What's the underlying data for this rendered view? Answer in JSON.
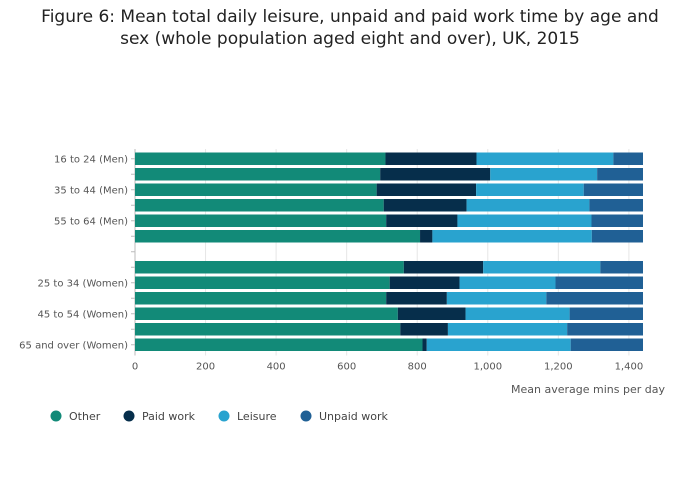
{
  "title": {
    "line1": "Figure 6: Mean total daily leisure, unpaid and paid work time by age and",
    "line2": "sex (whole population aged eight and over), UK, 2015"
  },
  "chart_data": {
    "type": "bar",
    "orientation": "horizontal",
    "stacked": true,
    "xlabel": "Mean average mins per day",
    "xlim": [
      0,
      1440
    ],
    "xticks": [
      0,
      200,
      400,
      600,
      800,
      1000,
      1200,
      1400
    ],
    "xtick_labels": [
      "0",
      "200",
      "400",
      "600",
      "800",
      "1,000",
      "1,200",
      "1,400"
    ],
    "categories": [
      "16 to 24 (Men)",
      "",
      "35 to 44 (Men)",
      "",
      "55 to 64 (Men)",
      "",
      "",
      "",
      "25 to 34 (Women)",
      "",
      "45 to 54 (Women)",
      "",
      "65 and over (Women)"
    ],
    "bar_present": [
      true,
      true,
      true,
      true,
      true,
      true,
      false,
      true,
      true,
      true,
      true,
      true,
      true
    ],
    "series": [
      {
        "name": "Other",
        "color": "#128a78",
        "values": [
          710,
          695,
          685,
          705,
          712,
          808,
          0,
          762,
          722,
          712,
          745,
          752,
          815
        ]
      },
      {
        "name": "Paid work",
        "color": "#062e4b",
        "values": [
          258,
          312,
          282,
          235,
          202,
          35,
          0,
          225,
          198,
          172,
          192,
          135,
          12
        ]
      },
      {
        "name": "Leisure",
        "color": "#29a3cf",
        "values": [
          388,
          303,
          305,
          348,
          380,
          452,
          0,
          332,
          272,
          282,
          295,
          338,
          408
        ]
      },
      {
        "name": "Unpaid work",
        "color": "#206095",
        "values": [
          84,
          130,
          168,
          152,
          146,
          145,
          0,
          121,
          248,
          274,
          208,
          215,
          205
        ]
      }
    ],
    "legend_position": "bottom-left",
    "grid": "vertical"
  }
}
